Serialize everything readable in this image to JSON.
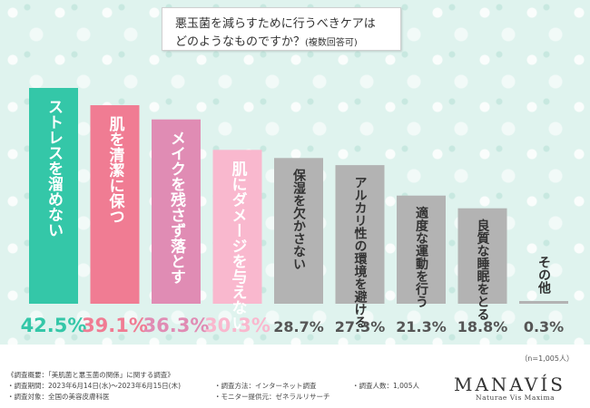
{
  "title": {
    "line1": "悪玉菌を減らすために行うべきケアは",
    "line2": "どのようなものですか？",
    "line2_note": "(複数回答可)"
  },
  "chart_data": {
    "type": "bar",
    "categories": [
      "ストレスを溜めない",
      "肌を清潔に保つ",
      "メイクを残さず落とす",
      "肌にダメージを与えない",
      "保湿を欠かさない",
      "アルカリ性の環境を避ける",
      "適度な運動を行う",
      "良質な睡眠をとる",
      "その他"
    ],
    "values": [
      42.5,
      39.1,
      36.3,
      30.3,
      28.7,
      27.3,
      21.3,
      18.8,
      0.3
    ],
    "value_labels": [
      "42.5%",
      "39.1%",
      "36.3%",
      "30.3%",
      "28.7%",
      "27.3%",
      "21.3%",
      "18.8%",
      "0.3%"
    ],
    "colors": [
      "#34c7a8",
      "#f07c93",
      "#e08cb4",
      "#f9b8ce",
      "#b3b3b3",
      "#b3b3b3",
      "#b3b3b3",
      "#b3b3b3",
      "#b3b3b3"
    ],
    "label_colors": [
      "#34c7a8",
      "#f07c93",
      "#e08cb4",
      "#f9b8ce",
      "#555555",
      "#555555",
      "#555555",
      "#555555",
      "#555555"
    ],
    "ylim": [
      0,
      42.5
    ]
  },
  "note": "（n=1,005人）",
  "footer": {
    "survey_outline": "《調査概要：「美肌菌と悪玉菌の関係」に関する調査》",
    "period": "・調査期間：2023年6月14日(水)〜2023年6月15日(木)",
    "target": "・調査対象：全国の美容皮膚科医",
    "method": "・調査方法：インターネット調査",
    "provider": "・モニター提供元：ゼネラルリサーチ",
    "count": "・調査人数：1,005人"
  },
  "logo": {
    "name": "MANAVÍS",
    "tagline": "Naturae Vis Maxima"
  }
}
